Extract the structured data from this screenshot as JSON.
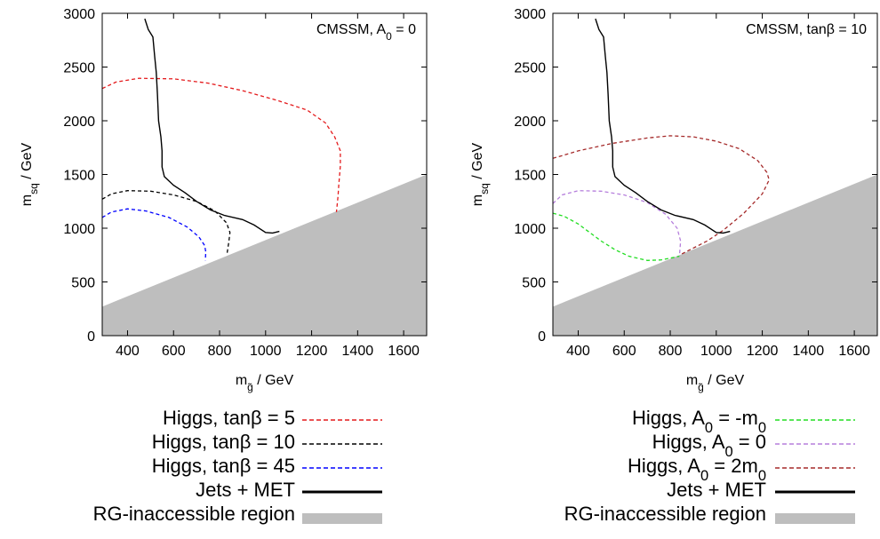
{
  "chart_data": [
    {
      "type": "line",
      "annotation": "CMSSM, A",
      "annotation_sub": "0",
      "annotation_tail": " = 0",
      "xlabel": "m",
      "xlabel_sub": "g̃",
      "xlabel_tail": " / GeV",
      "ylabel": "m",
      "ylabel_sub": "sq",
      "ylabel_tail": " / GeV",
      "xlim": [
        290,
        1700
      ],
      "ylim": [
        0,
        3000
      ],
      "x_ticks": [
        "400",
        "600",
        "800",
        "1000",
        "1200",
        "1400",
        "1600"
      ],
      "y_ticks": [
        "0",
        "500",
        "1000",
        "1500",
        "2000",
        "2500",
        "3000"
      ],
      "region": {
        "name": "RG-inaccessible region",
        "color": "#bebebe",
        "boundary": [
          [
            290,
            270
          ],
          [
            1700,
            1500
          ]
        ]
      },
      "series": [
        {
          "name": "Higgs, tanβ = 5",
          "color": "#e41a1c",
          "style": "dashed",
          "points": [
            [
              290,
              2300
            ],
            [
              350,
              2360
            ],
            [
              450,
              2395
            ],
            [
              600,
              2390
            ],
            [
              750,
              2350
            ],
            [
              900,
              2280
            ],
            [
              1050,
              2190
            ],
            [
              1180,
              2100
            ],
            [
              1260,
              1980
            ],
            [
              1300,
              1850
            ],
            [
              1325,
              1720
            ],
            [
              1325,
              1580
            ],
            [
              1318,
              1400
            ],
            [
              1315,
              1300
            ],
            [
              1308,
              1150
            ]
          ]
        },
        {
          "name": "Higgs, tanβ = 10",
          "color": "#000000",
          "style": "dashed",
          "points": [
            [
              290,
              1270
            ],
            [
              330,
              1320
            ],
            [
              400,
              1350
            ],
            [
              500,
              1345
            ],
            [
              600,
              1310
            ],
            [
              700,
              1250
            ],
            [
              780,
              1160
            ],
            [
              830,
              1050
            ],
            [
              845,
              960
            ],
            [
              840,
              870
            ],
            [
              835,
              800
            ],
            [
              832,
              755
            ]
          ]
        },
        {
          "name": "Higgs, tanβ = 45",
          "color": "#0000ff",
          "style": "dashed",
          "points": [
            [
              290,
              1100
            ],
            [
              330,
              1150
            ],
            [
              400,
              1180
            ],
            [
              480,
              1160
            ],
            [
              580,
              1100
            ],
            [
              660,
              1010
            ],
            [
              710,
              920
            ],
            [
              735,
              840
            ],
            [
              740,
              780
            ],
            [
              738,
              700
            ]
          ]
        },
        {
          "name": "Jets + MET",
          "color": "#000000",
          "style": "solid",
          "points": [
            [
              475,
              2950
            ],
            [
              490,
              2850
            ],
            [
              510,
              2780
            ],
            [
              518,
              2600
            ],
            [
              525,
              2450
            ],
            [
              530,
              2250
            ],
            [
              535,
              2000
            ],
            [
              545,
              1850
            ],
            [
              550,
              1720
            ],
            [
              550,
              1570
            ],
            [
              560,
              1480
            ],
            [
              600,
              1400
            ],
            [
              650,
              1330
            ],
            [
              700,
              1250
            ],
            [
              760,
              1170
            ],
            [
              820,
              1120
            ],
            [
              900,
              1080
            ],
            [
              950,
              1030
            ],
            [
              1000,
              960
            ],
            [
              1030,
              955
            ],
            [
              1060,
              970
            ]
          ]
        }
      ],
      "legend": [
        {
          "label": "Higgs, tanβ = 5",
          "color": "#e41a1c",
          "style": "dashed"
        },
        {
          "label": "Higgs, tanβ = 10",
          "color": "#000000",
          "style": "dashed"
        },
        {
          "label": "Higgs, tanβ = 45",
          "color": "#0000ff",
          "style": "dashed"
        },
        {
          "label": "Jets + MET",
          "color": "#000000",
          "style": "solid"
        },
        {
          "label": "RG-inaccessible region",
          "color": "#bebebe",
          "style": "fill"
        }
      ]
    },
    {
      "type": "line",
      "annotation": "CMSSM, tanβ = 10",
      "annotation_sub": "",
      "annotation_tail": "",
      "xlabel": "m",
      "xlabel_sub": "g̃",
      "xlabel_tail": " / GeV",
      "ylabel": "m",
      "ylabel_sub": "sq",
      "ylabel_tail": " / GeV",
      "xlim": [
        290,
        1700
      ],
      "ylim": [
        0,
        3000
      ],
      "x_ticks": [
        "400",
        "600",
        "800",
        "1000",
        "1200",
        "1400",
        "1600"
      ],
      "y_ticks": [
        "0",
        "500",
        "1000",
        "1500",
        "2000",
        "2500",
        "3000"
      ],
      "region": {
        "name": "RG-inaccessible region",
        "color": "#bebebe",
        "boundary": [
          [
            290,
            270
          ],
          [
            1700,
            1500
          ]
        ]
      },
      "series": [
        {
          "name": "Higgs, A0 = -m0",
          "color": "#22dd22",
          "style": "dashed",
          "points": [
            [
              290,
              1140
            ],
            [
              340,
              1110
            ],
            [
              400,
              1040
            ],
            [
              450,
              960
            ],
            [
              500,
              880
            ],
            [
              560,
              800
            ],
            [
              620,
              740
            ],
            [
              700,
              700
            ],
            [
              760,
              705
            ],
            [
              820,
              730
            ],
            [
              840,
              740
            ]
          ]
        },
        {
          "name": "Higgs, A0 = 0",
          "color": "#b57edc",
          "style": "dashed",
          "points": [
            [
              290,
              1230
            ],
            [
              330,
              1310
            ],
            [
              400,
              1350
            ],
            [
              500,
              1345
            ],
            [
              600,
              1310
            ],
            [
              700,
              1240
            ],
            [
              780,
              1130
            ],
            [
              830,
              1000
            ],
            [
              845,
              880
            ],
            [
              842,
              800
            ],
            [
              840,
              740
            ]
          ]
        },
        {
          "name": "Higgs, A0 = 2m0",
          "color": "#a52a2a",
          "style": "dashed",
          "points": [
            [
              290,
              1650
            ],
            [
              400,
              1720
            ],
            [
              550,
              1790
            ],
            [
              700,
              1840
            ],
            [
              800,
              1860
            ],
            [
              900,
              1850
            ],
            [
              1000,
              1810
            ],
            [
              1100,
              1740
            ],
            [
              1180,
              1630
            ],
            [
              1220,
              1520
            ],
            [
              1230,
              1450
            ],
            [
              1200,
              1320
            ],
            [
              1120,
              1140
            ],
            [
              1030,
              980
            ],
            [
              960,
              880
            ],
            [
              850,
              760
            ]
          ]
        },
        {
          "name": "Jets + MET",
          "color": "#000000",
          "style": "solid",
          "points": [
            [
              475,
              2950
            ],
            [
              490,
              2850
            ],
            [
              510,
              2780
            ],
            [
              518,
              2600
            ],
            [
              525,
              2450
            ],
            [
              530,
              2250
            ],
            [
              535,
              2000
            ],
            [
              545,
              1850
            ],
            [
              550,
              1720
            ],
            [
              550,
              1570
            ],
            [
              560,
              1480
            ],
            [
              600,
              1400
            ],
            [
              650,
              1330
            ],
            [
              700,
              1250
            ],
            [
              760,
              1170
            ],
            [
              820,
              1120
            ],
            [
              900,
              1080
            ],
            [
              950,
              1030
            ],
            [
              1000,
              960
            ],
            [
              1030,
              955
            ],
            [
              1060,
              970
            ]
          ]
        }
      ],
      "legend": [
        {
          "label": "Higgs, A",
          "sub": "0",
          "tail": " = -m",
          "sub2": "0",
          "color": "#22dd22",
          "style": "dashed"
        },
        {
          "label": "Higgs, A",
          "sub": "0",
          "tail": " = 0",
          "sub2": "",
          "color": "#b57edc",
          "style": "dashed"
        },
        {
          "label": "Higgs, A",
          "sub": "0",
          "tail": " = 2m",
          "sub2": "0",
          "color": "#a52a2a",
          "style": "dashed"
        },
        {
          "label": "Jets + MET",
          "sub": "",
          "tail": "",
          "sub2": "",
          "color": "#000000",
          "style": "solid"
        },
        {
          "label": "RG-inaccessible region",
          "sub": "",
          "tail": "",
          "sub2": "",
          "color": "#bebebe",
          "style": "fill"
        }
      ]
    }
  ]
}
